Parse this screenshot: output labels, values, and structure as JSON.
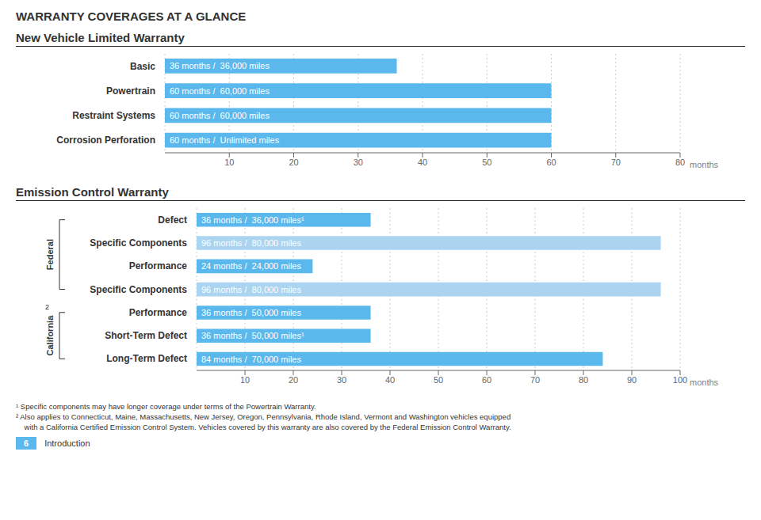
{
  "chart_data": [
    {
      "type": "bar",
      "orientation": "horizontal",
      "title": "New Vehicle Limited Warranty",
      "categories": [
        "Basic",
        "Powertrain",
        "Restraint Systems",
        "Corrosion Perforation"
      ],
      "values": [
        36,
        60,
        60,
        60
      ],
      "value_labels": [
        "36 months /  36,000 miles",
        "60 months /  60,000 miles",
        "60 months /  60,000 miles",
        "60 months /  Unlimited miles"
      ],
      "colors": [
        "#5bb8ec",
        "#5bb8ec",
        "#5bb8ec",
        "#5bb8ec"
      ],
      "xlabel": "months",
      "xlim": [
        0,
        80
      ],
      "xticks": [
        10,
        20,
        30,
        40,
        50,
        60,
        70,
        80
      ],
      "grid": true,
      "data_labels": true,
      "annotations": [
        "WARRANTY COVERAGES AT A GLANCE",
        "6",
        "Introduction"
      ]
    },
    {
      "type": "bar",
      "orientation": "horizontal",
      "title": "Emission Control Warranty",
      "categories": [
        "Defect",
        "Specific Components",
        "Performance",
        "Specific Components",
        "Performance",
        "Short-Term Defect",
        "Long-Term Defect"
      ],
      "groups": [
        "Federal",
        "Federal",
        "Federal",
        "Federal",
        "California",
        "California",
        "California"
      ],
      "values": [
        36,
        96,
        24,
        96,
        36,
        36,
        84
      ],
      "value_labels": [
        "36 months /  36,000 miles¹",
        "96 months /  80,000 miles",
        "24 months /  24,000 miles",
        "96 months /  80,000 miles",
        "36 months /  50,000 miles",
        "36 months /  50,000 miles¹",
        "84 months /  70,000 miles"
      ],
      "colors": [
        "#5bb8ec",
        "#aad4f0",
        "#5bb8ec",
        "#aad4f0",
        "#5bb8ec",
        "#5bb8ec",
        "#5bb8ec"
      ],
      "xlabel": "months",
      "xlim": [
        0,
        100
      ],
      "xticks": [
        10,
        20,
        30,
        40,
        50,
        60,
        70,
        80,
        90,
        100
      ],
      "grid": true,
      "data_labels": true,
      "annotations": [
        "¹ Specific components may have longer coverage under terms of the Powertrain Warranty.",
        "² Also applies to Connecticut, Maine, Massachusetts, New Jersey, Oregon, Pennsylvania, Rhode Island, Vermont and Washington vehicles equipped",
        "    with a California Certified Emission Control System. Vehicles covered by this warranty are also covered by the Federal Emission Control Warranty.",
        "2"
      ]
    }
  ]
}
